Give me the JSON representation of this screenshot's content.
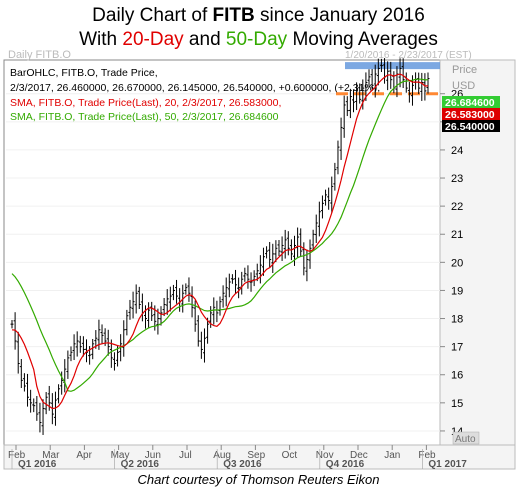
{
  "title": {
    "line1_pre": "Daily Chart of ",
    "line1_bold": "FITB",
    "line1_post": " since January 2016",
    "line2_pre": "With ",
    "line2_a": "20-Day",
    "line2_mid": " and ",
    "line2_b": "50-Day",
    "line2_post": " Moving Averages"
  },
  "header": {
    "symbol_label": "Daily FITB.O",
    "date_range": "1/20/2016 - 2/23/2017 (EST)",
    "price_label": "Price",
    "currency_label": "USD",
    "auto_label": "Auto"
  },
  "legend": {
    "line1": "BarOHLC, FITB.O, Trade Price,",
    "line2": "2/3/2017, 26.460000, 26.670000, 26.145000, 26.540000, +0.600000, (+2.31%),",
    "line3": "SMA, FITB.O, Trade Price(Last), 20, 2/3/2017, 26.583000,",
    "line4": "SMA, FITB.O, Trade Price(Last), 50, 2/3/2017, 26.684600"
  },
  "price_tags": {
    "sma50": "26.684600",
    "sma20": "26.583000",
    "last": "26.540000"
  },
  "colors": {
    "bars": "#000000",
    "sma20": "#e00000",
    "sma50": "#33aa00",
    "resistance": "#6699dd",
    "support": "#ff8833",
    "tag_sma50": "#33cc33",
    "tag_sma20": "#dd0000",
    "tag_last": "#000000"
  },
  "credit": "Chart courtesy of Thomson Reuters Eikon",
  "chart_data": {
    "type": "ohlc",
    "y_axis": {
      "min": 13.5,
      "max": 27.2,
      "ticks": [
        14,
        15,
        16,
        17,
        18,
        19,
        20,
        21,
        22,
        23,
        24,
        25,
        26
      ]
    },
    "x_axis": {
      "months": [
        "Feb",
        "Mar",
        "Apr",
        "May",
        "Jun",
        "Jul",
        "Aug",
        "Sep",
        "Oct",
        "Nov",
        "Dec",
        "Jan",
        "Feb"
      ],
      "quarters": [
        "Q1 2016",
        "Q2 2016",
        "Q3 2016",
        "Q4 2016",
        "Q1 2017"
      ]
    },
    "resistance_level": 27.0,
    "support_level": 26.0,
    "series": [
      {
        "name": "FITB.O Trade Price (daily close)",
        "values": [
          17.8,
          17.2,
          16.4,
          15.8,
          15.6,
          15.2,
          15.0,
          14.9,
          14.6,
          14.3,
          14.8,
          15.2,
          15.0,
          14.6,
          15.1,
          15.5,
          15.8,
          16.2,
          16.6,
          16.8,
          17.1,
          17.2,
          17.0,
          16.9,
          16.8,
          16.7,
          17.1,
          17.3,
          17.6,
          17.4,
          17.2,
          17.0,
          16.6,
          16.4,
          16.8,
          17.1,
          17.6,
          18.1,
          18.4,
          18.6,
          18.9,
          18.5,
          18.2,
          18.0,
          18.3,
          18.1,
          17.9,
          18.0,
          18.2,
          18.5,
          18.7,
          18.8,
          19.0,
          18.8,
          18.6,
          18.9,
          19.1,
          18.9,
          18.4,
          17.8,
          17.2,
          16.9,
          17.3,
          17.8,
          18.2,
          18.4,
          18.2,
          18.6,
          18.9,
          19.1,
          19.3,
          19.4,
          19.2,
          19.1,
          19.4,
          19.6,
          19.4,
          19.3,
          19.5,
          19.7,
          19.9,
          20.2,
          20.4,
          20.1,
          20.3,
          20.5,
          20.4,
          20.6,
          20.8,
          20.5,
          20.3,
          20.6,
          20.9,
          20.4,
          19.8,
          20.1,
          20.5,
          21.0,
          21.4,
          21.8,
          22.1,
          22.4,
          22.2,
          22.7,
          23.3,
          24.1,
          24.8,
          25.6,
          25.4,
          25.9,
          25.7,
          26.1,
          25.8,
          26.2,
          26.4,
          26.6,
          26.3,
          26.7,
          26.9,
          27.0,
          26.6,
          26.8,
          26.5,
          26.2,
          26.7,
          26.9,
          26.5,
          26.2,
          26.0,
          26.3,
          26.5,
          26.2,
          26.4,
          26.1,
          26.54
        ]
      }
    ]
  }
}
